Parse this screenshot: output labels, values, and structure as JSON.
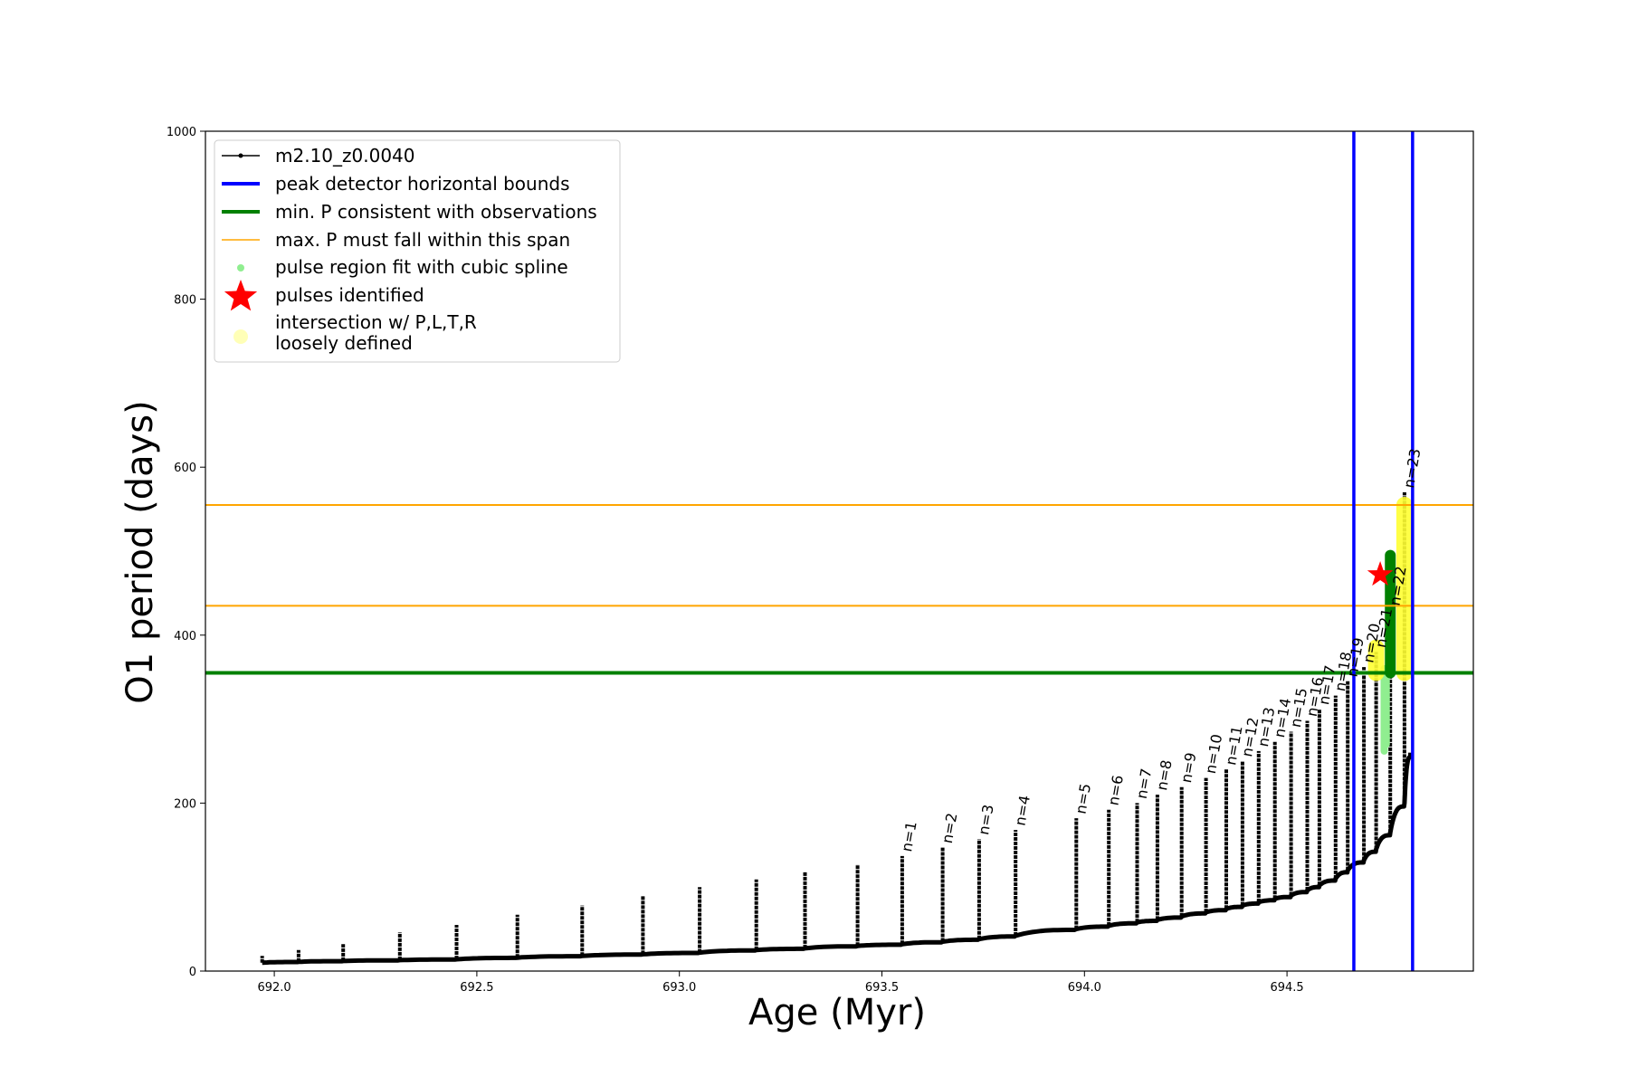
{
  "chart_data": {
    "type": "line",
    "xlabel": "Age (Myr)",
    "ylabel": "O1 period (days)",
    "xlim": [
      691.83,
      694.96
    ],
    "ylim": [
      0,
      1000
    ],
    "xticks": [
      692.0,
      692.5,
      693.0,
      693.5,
      694.0,
      694.5
    ],
    "xtick_labels": [
      "692.0",
      "692.5",
      "693.0",
      "693.5",
      "694.0",
      "694.5"
    ],
    "yticks": [
      0,
      200,
      400,
      600,
      800,
      1000
    ],
    "ytick_labels": [
      "0",
      "200",
      "400",
      "600",
      "800",
      "1000"
    ],
    "grid": false,
    "legend_position": "upper-left",
    "legend": [
      {
        "label": "m2.10_z0.0040",
        "color": "#000000",
        "style": "line-marker"
      },
      {
        "label": "peak detector horizontal bounds",
        "color": "#0000ff",
        "style": "thick-line"
      },
      {
        "label": "min. P consistent with observations",
        "color": "#008000",
        "style": "thick-line"
      },
      {
        "label": "max. P must fall within this span",
        "color": "#ffa500",
        "style": "thin-line"
      },
      {
        "label": "pulse region fit with cubic spline",
        "color": "#90ee90",
        "style": "dot"
      },
      {
        "label": "pulses identified",
        "color": "#ff0000",
        "style": "star"
      },
      {
        "label": "intersection w/ P,L,T,R",
        "label2": "loosely defined",
        "color": "#ffff99",
        "style": "big-dot"
      }
    ],
    "series_name": "m2.10_z0.0040",
    "pulses": [
      {
        "x": 691.97,
        "min": 10,
        "max": 18
      },
      {
        "x": 692.06,
        "min": 11,
        "max": 25
      },
      {
        "x": 692.17,
        "min": 12,
        "max": 32
      },
      {
        "x": 692.31,
        "min": 13,
        "max": 46
      },
      {
        "x": 692.45,
        "min": 14,
        "max": 55
      },
      {
        "x": 692.6,
        "min": 16,
        "max": 67
      },
      {
        "x": 692.76,
        "min": 18,
        "max": 78
      },
      {
        "x": 692.91,
        "min": 20,
        "max": 90
      },
      {
        "x": 693.05,
        "min": 22,
        "max": 100
      },
      {
        "x": 693.19,
        "min": 25,
        "max": 109
      },
      {
        "x": 693.31,
        "min": 27,
        "max": 118
      },
      {
        "x": 693.44,
        "min": 30,
        "max": 127
      },
      {
        "x": 693.55,
        "min": 32,
        "max": 137,
        "n": "n=1"
      },
      {
        "x": 693.65,
        "min": 35,
        "max": 147,
        "n": "n=2"
      },
      {
        "x": 693.74,
        "min": 38,
        "max": 157,
        "n": "n=3"
      },
      {
        "x": 693.83,
        "min": 42,
        "max": 168,
        "n": "n=4"
      },
      {
        "x": 693.98,
        "min": 50,
        "max": 182,
        "n": "n=5"
      },
      {
        "x": 694.06,
        "min": 54,
        "max": 192,
        "n": "n=6"
      },
      {
        "x": 694.13,
        "min": 58,
        "max": 200,
        "n": "n=7"
      },
      {
        "x": 694.18,
        "min": 61,
        "max": 210,
        "n": "n=8"
      },
      {
        "x": 694.24,
        "min": 65,
        "max": 219,
        "n": "n=9"
      },
      {
        "x": 694.3,
        "min": 70,
        "max": 230,
        "n": "n=10"
      },
      {
        "x": 694.35,
        "min": 74,
        "max": 240,
        "n": "n=11"
      },
      {
        "x": 694.39,
        "min": 78,
        "max": 250,
        "n": "n=12"
      },
      {
        "x": 694.43,
        "min": 82,
        "max": 262,
        "n": "n=13"
      },
      {
        "x": 694.47,
        "min": 86,
        "max": 273,
        "n": "n=14"
      },
      {
        "x": 694.51,
        "min": 90,
        "max": 285,
        "n": "n=15"
      },
      {
        "x": 694.55,
        "min": 96,
        "max": 298,
        "n": "n=16"
      },
      {
        "x": 694.58,
        "min": 102,
        "max": 312,
        "n": "n=17"
      },
      {
        "x": 694.62,
        "min": 110,
        "max": 328,
        "n": "n=18"
      },
      {
        "x": 694.65,
        "min": 120,
        "max": 345,
        "n": "n=19"
      },
      {
        "x": 694.69,
        "min": 132,
        "max": 362,
        "n": "n=20"
      },
      {
        "x": 694.72,
        "min": 145,
        "max": 380,
        "n": "n=21"
      },
      {
        "x": 694.755,
        "min": 165,
        "max": 430,
        "n": "n=22"
      },
      {
        "x": 694.79,
        "min": 200,
        "max": 570,
        "n": "n=23"
      }
    ],
    "hlines": [
      {
        "y": 555,
        "color": "#ffa500",
        "role": "max-span-upper"
      },
      {
        "y": 435,
        "color": "#ffa500",
        "role": "max-span-lower"
      },
      {
        "y": 355,
        "color": "#008000",
        "role": "min-period"
      }
    ],
    "vlines": [
      {
        "x": 694.665,
        "color": "#0000ff"
      },
      {
        "x": 694.81,
        "color": "#0000ff"
      }
    ],
    "spline_regions": [
      {
        "x": 694.74,
        "ymin": 262,
        "ymax": 360
      },
      {
        "x": 694.745,
        "ymin": 270,
        "ymax": 350
      }
    ],
    "highlight_regions": [
      {
        "x": 694.755,
        "ymin": 355,
        "ymax": 495,
        "color": "#008000"
      },
      {
        "x": 694.79,
        "ymin": 355,
        "ymax": 555,
        "color": "#ffff33"
      },
      {
        "x": 694.72,
        "ymin": 355,
        "ymax": 385,
        "color": "#ffff33"
      }
    ],
    "star": {
      "x": 694.73,
      "y": 472
    }
  }
}
